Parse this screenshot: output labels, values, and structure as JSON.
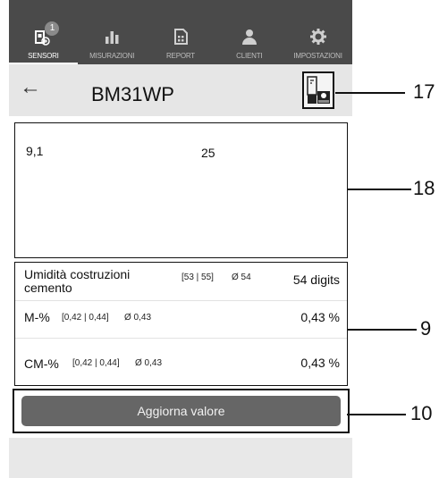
{
  "nav": {
    "items": [
      {
        "label": "SENSORI",
        "icon": "sensor-icon",
        "active": true,
        "badge": "1"
      },
      {
        "label": "MISURAZIONI",
        "icon": "bar-chart-icon"
      },
      {
        "label": "REPORT",
        "icon": "report-icon"
      },
      {
        "label": "CLIENTI",
        "icon": "user-icon"
      },
      {
        "label": "IMPOSTAZIONI",
        "icon": "gear-icon"
      }
    ]
  },
  "header": {
    "back_icon": "arrow-left-icon",
    "title": "BM31WP",
    "rec_icon": "rec-icon"
  },
  "graph": {
    "left_value": "9,1",
    "right_value": "25"
  },
  "values": {
    "row1": {
      "label": "Umidità costruzioni cemento",
      "range": "[53 | 55]",
      "avg": "Ø 54",
      "value": "54 digits"
    },
    "row2": {
      "label": "M-%",
      "range": "[0,42 | 0,44]",
      "avg": "Ø 0,43",
      "value": "0,43 %"
    },
    "row3": {
      "label": "CM-%",
      "range": "[0,42 | 0,44]",
      "avg": "Ø 0,43",
      "value": "0,43 %"
    }
  },
  "button": {
    "label": "Aggiorna valore"
  },
  "callouts": {
    "c17": "17",
    "c18": "18",
    "c9": "9",
    "c10": "10"
  }
}
